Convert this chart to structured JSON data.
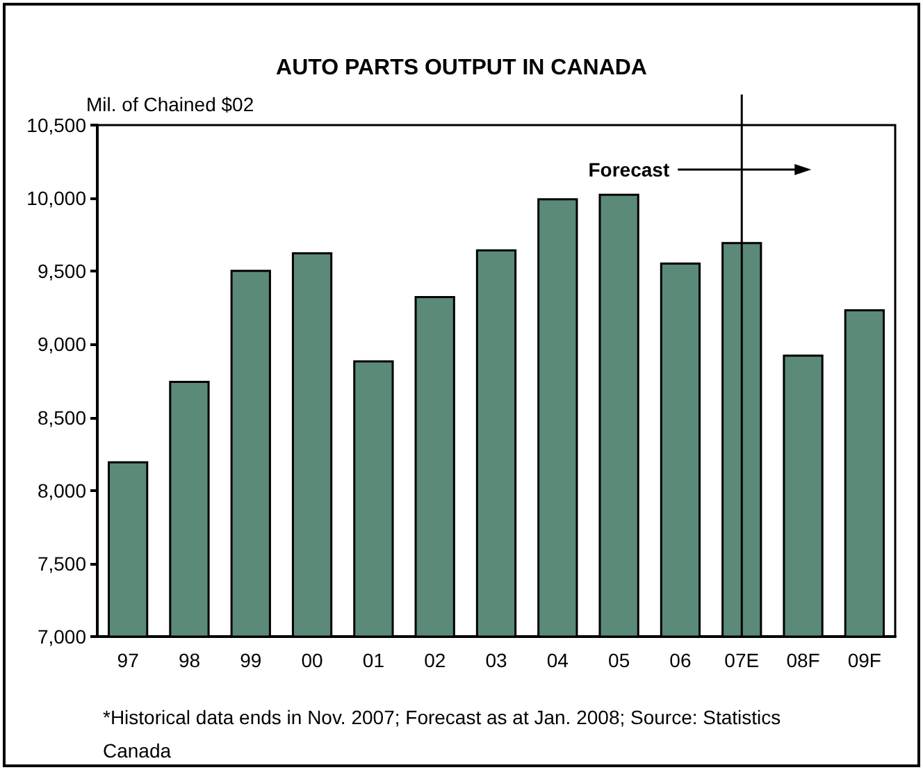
{
  "chart_data": {
    "type": "bar",
    "title": "AUTO PARTS OUTPUT IN CANADA",
    "ylabel": "Mil. of Chained $02",
    "categories": [
      "97",
      "98",
      "99",
      "00",
      "01",
      "02",
      "03",
      "04",
      "05",
      "06",
      "07E",
      "08F",
      "09F"
    ],
    "values": [
      8200,
      8750,
      9510,
      9630,
      8890,
      9330,
      9650,
      10000,
      10030,
      9560,
      9700,
      8930,
      9240
    ],
    "color": "#5b8a78",
    "ylim": [
      7000,
      10500
    ],
    "yticks": [
      {
        "value": 7000,
        "label": "7,000"
      },
      {
        "value": 7500,
        "label": "7,500"
      },
      {
        "value": 8000,
        "label": "8,000"
      },
      {
        "value": 8500,
        "label": "8,500"
      },
      {
        "value": 9000,
        "label": "9,000"
      },
      {
        "value": 9500,
        "label": "9,500"
      },
      {
        "value": 10000,
        "label": "10,000"
      },
      {
        "value": 10500,
        "label": "10,500"
      }
    ],
    "ref_lines": [
      {
        "axis": "x",
        "value": "07E",
        "label": "Forecast"
      }
    ],
    "annotations": [
      "*Historical data ends in Nov. 2007; Forecast as at Jan. 2008; Source: Statistics Canada"
    ],
    "grid": false,
    "legend": false
  }
}
